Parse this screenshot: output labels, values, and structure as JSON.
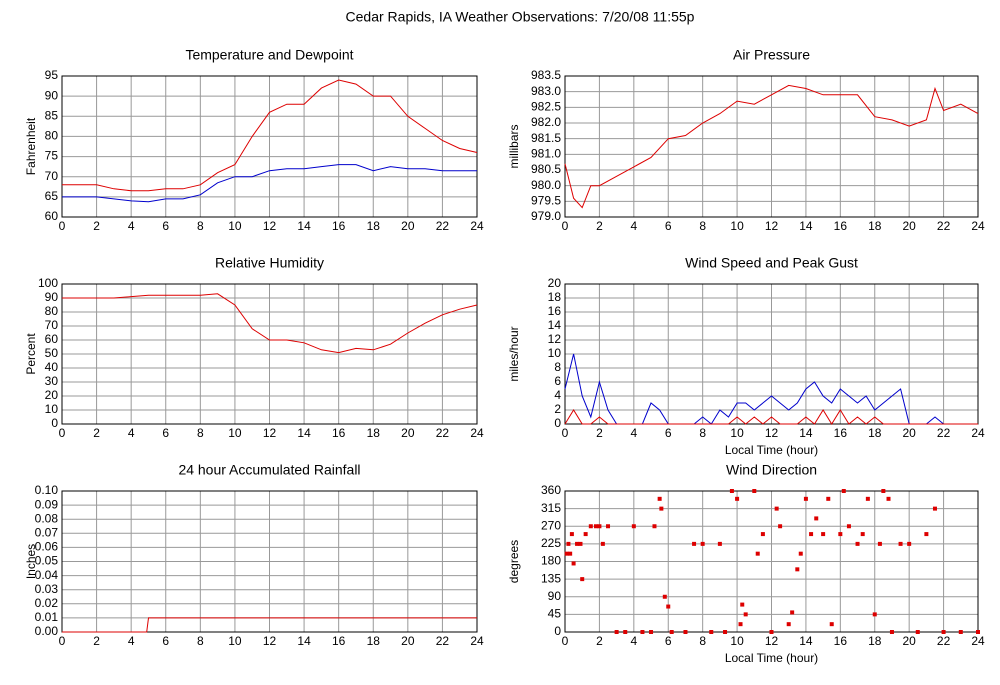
{
  "title": "Cedar Rapids, IA Weather Observations: 7/20/08 11:55p",
  "chart_data": [
    {
      "type": "line",
      "title": "Temperature and Dewpoint",
      "ylabel": "Fahrenheit",
      "x": [
        0,
        1,
        2,
        3,
        4,
        5,
        6,
        7,
        8,
        9,
        10,
        11,
        12,
        13,
        14,
        15,
        16,
        17,
        18,
        19,
        20,
        21,
        22,
        23,
        24
      ],
      "series": [
        {
          "color": "#dd0000",
          "values": [
            68,
            68,
            68,
            67,
            66.5,
            66.5,
            67,
            67,
            68,
            71,
            73,
            80,
            86,
            88,
            88,
            92,
            94,
            93,
            90,
            90,
            85,
            82,
            79,
            77,
            76
          ]
        },
        {
          "color": "#0000cc",
          "values": [
            65,
            65,
            65,
            64.5,
            64,
            63.8,
            64.5,
            64.5,
            65.5,
            68.5,
            70,
            70,
            71.5,
            72,
            72,
            72.5,
            73,
            73,
            71.5,
            72.5,
            72,
            72,
            71.5,
            71.5,
            71.5
          ]
        }
      ],
      "xlim": [
        0,
        24
      ],
      "ylim": [
        60,
        95
      ],
      "xticks": [
        0,
        2,
        4,
        6,
        8,
        10,
        12,
        14,
        16,
        18,
        20,
        22,
        24
      ],
      "yticks": [
        60,
        65,
        70,
        75,
        80,
        85,
        90,
        95
      ],
      "grid": true
    },
    {
      "type": "line",
      "title": "Air Pressure",
      "ylabel": "millibars",
      "x": [
        0,
        0.5,
        1,
        1.5,
        2,
        3,
        4,
        5,
        6,
        7,
        8,
        9,
        10,
        11,
        12,
        13,
        14,
        15,
        16,
        17,
        18,
        19,
        20,
        21,
        21.5,
        22,
        23,
        24
      ],
      "series": [
        {
          "color": "#dd0000",
          "values": [
            980.7,
            979.6,
            979.3,
            980.0,
            980.0,
            980.3,
            980.6,
            980.9,
            981.5,
            981.6,
            982.0,
            982.3,
            982.7,
            982.6,
            982.9,
            983.2,
            983.1,
            982.9,
            982.9,
            982.9,
            982.2,
            982.1,
            981.9,
            982.1,
            983.1,
            982.4,
            982.6,
            982.3
          ]
        }
      ],
      "xlim": [
        0,
        24
      ],
      "ylim": [
        979,
        983.5
      ],
      "xticks": [
        0,
        2,
        4,
        6,
        8,
        10,
        12,
        14,
        16,
        18,
        20,
        22,
        24
      ],
      "yticks": [
        {
          "value": 979,
          "label": "979.0"
        },
        {
          "value": 979.5,
          "label": "979.5"
        },
        {
          "value": 980,
          "label": "980.0"
        },
        {
          "value": 980.5,
          "label": "980.5"
        },
        {
          "value": 981,
          "label": "981.0"
        },
        {
          "value": 981.5,
          "label": "981.5"
        },
        {
          "value": 982,
          "label": "982.0"
        },
        {
          "value": 982.5,
          "label": "982.5"
        },
        {
          "value": 983,
          "label": "983.0"
        },
        {
          "value": 983.5,
          "label": "983.5"
        }
      ],
      "grid": true
    },
    {
      "type": "line",
      "title": "Relative Humidity",
      "ylabel": "Percent",
      "x": [
        0,
        1,
        2,
        3,
        4,
        5,
        6,
        7,
        8,
        9,
        10,
        11,
        12,
        13,
        14,
        15,
        16,
        17,
        18,
        19,
        20,
        21,
        22,
        23,
        24
      ],
      "series": [
        {
          "color": "#dd0000",
          "values": [
            90,
            90,
            90,
            90,
            91,
            92,
            92,
            92,
            92,
            93,
            85,
            68,
            60,
            60,
            58,
            53,
            51,
            54,
            53,
            57,
            65,
            72,
            78,
            82,
            85
          ]
        }
      ],
      "xlim": [
        0,
        24
      ],
      "ylim": [
        0,
        100
      ],
      "xticks": [
        0,
        2,
        4,
        6,
        8,
        10,
        12,
        14,
        16,
        18,
        20,
        22,
        24
      ],
      "yticks": [
        0,
        10,
        20,
        30,
        40,
        50,
        60,
        70,
        80,
        90,
        100
      ],
      "grid": true
    },
    {
      "type": "line",
      "title": "Wind Speed and Peak Gust",
      "ylabel": "miles/hour",
      "xlabel": "Local Time (hour)",
      "x": [
        0,
        0.5,
        1,
        1.5,
        2,
        2.5,
        3,
        3.5,
        4,
        4.5,
        5,
        5.5,
        6,
        6.5,
        7,
        7.5,
        8,
        8.5,
        9,
        9.5,
        10,
        10.5,
        11,
        11.5,
        12,
        12.5,
        13,
        13.5,
        14,
        14.5,
        15,
        15.5,
        16,
        16.5,
        17,
        17.5,
        18,
        18.5,
        19,
        19.5,
        20,
        20.5,
        21,
        21.5,
        22,
        22.5,
        23,
        23.5,
        24
      ],
      "series": [
        {
          "color": "#0000cc",
          "values": [
            5,
            10,
            4,
            1,
            6,
            2,
            0,
            0,
            0,
            0,
            3,
            2,
            0,
            0,
            0,
            0,
            1,
            0,
            2,
            1,
            3,
            3,
            2,
            3,
            4,
            3,
            2,
            3,
            5,
            6,
            4,
            3,
            5,
            4,
            3,
            4,
            2,
            3,
            4,
            5,
            0,
            0,
            0,
            1,
            0,
            0,
            0,
            0,
            0
          ]
        },
        {
          "color": "#dd0000",
          "values": [
            0,
            2,
            0,
            0,
            1,
            0,
            0,
            0,
            0,
            0,
            0,
            0,
            0,
            0,
            0,
            0,
            0,
            0,
            0,
            0,
            1,
            0,
            1,
            0,
            1,
            0,
            0,
            0,
            1,
            0,
            2,
            0,
            2,
            0,
            1,
            0,
            1,
            0,
            0,
            0,
            0,
            0,
            0,
            0,
            0,
            0,
            0,
            0,
            0
          ]
        }
      ],
      "xlim": [
        0,
        24
      ],
      "ylim": [
        0,
        20
      ],
      "xticks": [
        0,
        2,
        4,
        6,
        8,
        10,
        12,
        14,
        16,
        18,
        20,
        22,
        24
      ],
      "yticks": [
        0,
        2,
        4,
        6,
        8,
        10,
        12,
        14,
        16,
        18,
        20
      ],
      "grid": true
    },
    {
      "type": "line",
      "title": "24 hour Accumulated Rainfall",
      "ylabel": "Inches",
      "x": [
        0,
        4.9,
        5,
        24
      ],
      "series": [
        {
          "color": "#dd0000",
          "values": [
            0,
            0,
            0.01,
            0.01
          ]
        }
      ],
      "xlim": [
        0,
        24
      ],
      "ylim": [
        0,
        0.1
      ],
      "xticks": [
        0,
        2,
        4,
        6,
        8,
        10,
        12,
        14,
        16,
        18,
        20,
        22,
        24
      ],
      "yticks": [
        {
          "value": 0,
          "label": "0.00"
        },
        {
          "value": 0.01,
          "label": "0.01"
        },
        {
          "value": 0.02,
          "label": "0.02"
        },
        {
          "value": 0.03,
          "label": "0.03"
        },
        {
          "value": 0.04,
          "label": "0.04"
        },
        {
          "value": 0.05,
          "label": "0.05"
        },
        {
          "value": 0.06,
          "label": "0.06"
        },
        {
          "value": 0.07,
          "label": "0.07"
        },
        {
          "value": 0.08,
          "label": "0.08"
        },
        {
          "value": 0.09,
          "label": "0.09"
        },
        {
          "value": 0.1,
          "label": "0.10"
        }
      ],
      "grid": true
    },
    {
      "type": "scatter",
      "title": "Wind Direction",
      "ylabel": "degrees",
      "xlabel": "Local Time (hour)",
      "x": [
        0.1,
        0.2,
        0.3,
        0.4,
        0.5,
        0.7,
        0.9,
        1,
        1.2,
        1.5,
        1.8,
        2,
        2.2,
        2.5,
        3,
        3.5,
        4,
        4.5,
        5,
        5.2,
        5.5,
        5.6,
        5.8,
        6,
        6.2,
        7,
        7.5,
        8,
        8.5,
        9,
        9.3,
        9.7,
        10,
        10.2,
        10.3,
        10.5,
        11,
        11.2,
        11.5,
        12,
        12.3,
        12.5,
        13,
        13.2,
        13.5,
        13.7,
        14,
        14.3,
        14.6,
        15,
        15.3,
        15.5,
        16,
        16.2,
        16.5,
        17,
        17.3,
        17.6,
        18,
        18.3,
        18.5,
        18.8,
        19,
        19.5,
        20,
        20.5,
        21,
        21.5,
        22,
        23,
        24
      ],
      "series": [
        {
          "color": "#dd0000",
          "values": [
            200,
            225,
            200,
            250,
            175,
            225,
            225,
            135,
            250,
            270,
            270,
            270,
            225,
            270,
            0,
            0,
            270,
            0,
            0,
            270,
            340,
            315,
            90,
            65,
            0,
            0,
            225,
            225,
            0,
            225,
            0,
            360,
            340,
            20,
            70,
            45,
            360,
            200,
            250,
            0,
            315,
            270,
            20,
            50,
            160,
            200,
            340,
            250,
            290,
            250,
            340,
            20,
            250,
            360,
            270,
            225,
            250,
            340,
            45,
            225,
            360,
            340,
            0,
            225,
            225,
            0,
            250,
            315,
            0,
            0,
            0
          ]
        }
      ],
      "xlim": [
        0,
        24
      ],
      "ylim": [
        0,
        360
      ],
      "xticks": [
        0,
        2,
        4,
        6,
        8,
        10,
        12,
        14,
        16,
        18,
        20,
        22,
        24
      ],
      "yticks": [
        0,
        45,
        90,
        135,
        180,
        225,
        270,
        315,
        360
      ],
      "grid": true
    }
  ]
}
